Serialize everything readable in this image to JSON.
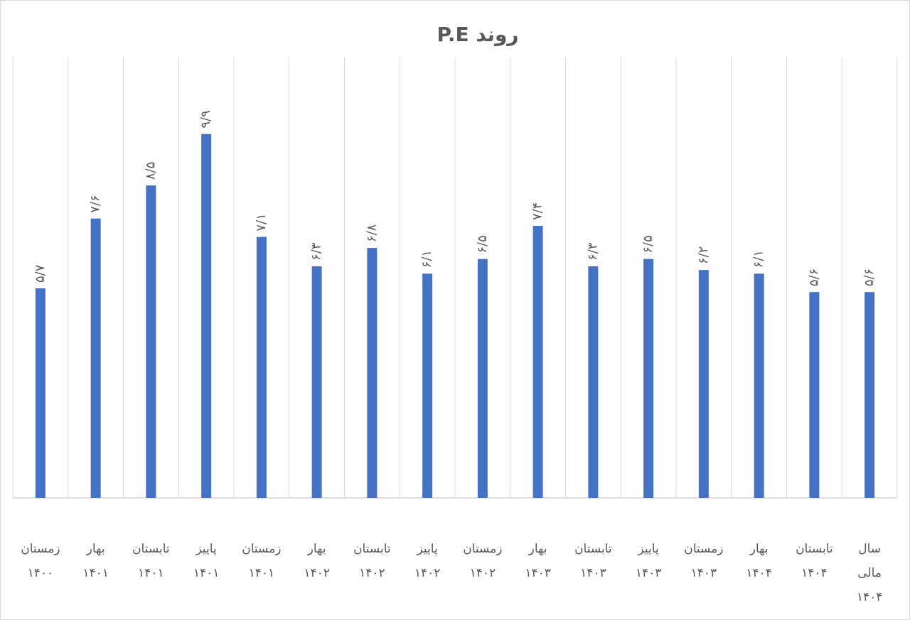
{
  "chart_data": {
    "type": "bar",
    "title": "روند P.E",
    "categories": [
      [
        "زمستان",
        "۱۴۰۰"
      ],
      [
        "بهار",
        "۱۴۰۱"
      ],
      [
        "تابستان",
        "۱۴۰۱"
      ],
      [
        "پاییز",
        "۱۴۰۱"
      ],
      [
        "زمستان",
        "۱۴۰۱"
      ],
      [
        "بهار",
        "۱۴۰۲"
      ],
      [
        "تابستان",
        "۱۴۰۲"
      ],
      [
        "پاییز",
        "۱۴۰۲"
      ],
      [
        "زمستان",
        "۱۴۰۲"
      ],
      [
        "بهار",
        "۱۴۰۳"
      ],
      [
        "تابستان",
        "۱۴۰۳"
      ],
      [
        "پاییز",
        "۱۴۰۳"
      ],
      [
        "زمستان",
        "۱۴۰۳"
      ],
      [
        "بهار",
        "۱۴۰۴"
      ],
      [
        "تابستان",
        "۱۴۰۴"
      ],
      [
        "سال",
        "مالی",
        "۱۴۰۴"
      ]
    ],
    "values": [
      5.7,
      7.6,
      8.5,
      9.9,
      7.1,
      6.3,
      6.8,
      6.1,
      6.5,
      7.4,
      6.3,
      6.5,
      6.2,
      6.1,
      5.6,
      5.6
    ],
    "value_labels": [
      "۵/۷",
      "۷/۶",
      "۸/۵",
      "۹/۹",
      "۷/۱",
      "۶/۳",
      "۶/۸",
      "۶/۱",
      "۶/۵",
      "۷/۴",
      "۶/۳",
      "۶/۵",
      "۶/۲",
      "۶/۱",
      "۵/۶",
      "۵/۶"
    ],
    "color": "#4472c4",
    "ylim": [
      0,
      12
    ],
    "grid": true
  }
}
